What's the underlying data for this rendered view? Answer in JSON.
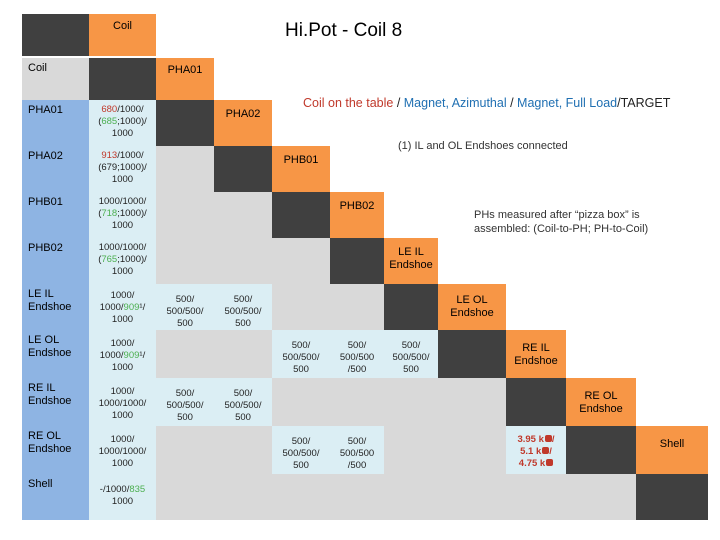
{
  "title": "Hi.Pot - Coil 8",
  "legend": {
    "part1": "Coil on the table",
    "sep1": " / ",
    "part2": "Magnet, Azimuthal",
    "sep2": " / ",
    "part3": "Magnet, Full Load",
    "sep3": "/",
    "part4": "TARGET"
  },
  "notes": {
    "endshoes": "(1) IL and OL Endshoes connected",
    "phs_line1": "PHs measured after “pizza box” is",
    "phs_line2": "assembled: (Coil-to-PH; PH-to-Coil)"
  },
  "header": {
    "coil": "Coil"
  },
  "rows": [
    "Coil",
    "PHA01",
    "PHA02",
    "PHB01",
    "PHB02",
    "LE IL\nEndshoe",
    "LE OL\nEndshoe",
    "RE IL\nEndshoe",
    "RE OL\nEndshoe",
    "Shell"
  ],
  "diag": [
    "PHA01",
    "PHA02",
    "PHB01",
    "PHB02",
    "LE IL\nEndshoe",
    "LE OL\nEndshoe",
    "RE IL\nEndshoe",
    "RE OL\nEndshoe",
    "Shell"
  ],
  "values": {
    "pha01_a": "680",
    "pha01_b": "/1000/",
    "pha01_c": "(",
    "pha01_d": "685",
    "pha01_e": ";1000)/",
    "pha01_f": "1000",
    "pha02_a": "913",
    "pha02_b": "/1000/",
    "pha02_c": "(679;1000)/",
    "pha02_d": "1000",
    "phb01_a": "1000/1000/",
    "phb01_b": "(",
    "phb01_c": "718",
    "phb01_d": ";1000)/",
    "phb01_e": "1000",
    "phb02_a": "1000/1000/",
    "phb02_b": "(",
    "phb02_c": "765",
    "phb02_d": ";1000)/",
    "phb02_e": "1000",
    "leil_a": "1000/",
    "leil_b": "1000/",
    "leil_c": "909",
    "leil_d": "¹/",
    "leil_e": "1000",
    "leol_a": "1000/",
    "leol_b": "1000/",
    "leol_c": "909",
    "leol_d": "¹/",
    "leol_e": "1000",
    "reil_a": "1000/",
    "reil_b": "1000/1000/",
    "reil_c": "1000",
    "reol_a": "1000/",
    "reol_b": "1000/1000/",
    "reol_c": "1000",
    "shell_a": "-/1000/",
    "shell_b": "835",
    "shell_c": "1000",
    "v500_a": "500/",
    "v500_b": "500/500/",
    "v500_c": "500",
    "v500s_a": "500/",
    "v500s_b": "500/500",
    "v500s_c": "/500",
    "k1": "3.95 k",
    "k2": "5.1 k",
    "k3": "4.75 k"
  }
}
